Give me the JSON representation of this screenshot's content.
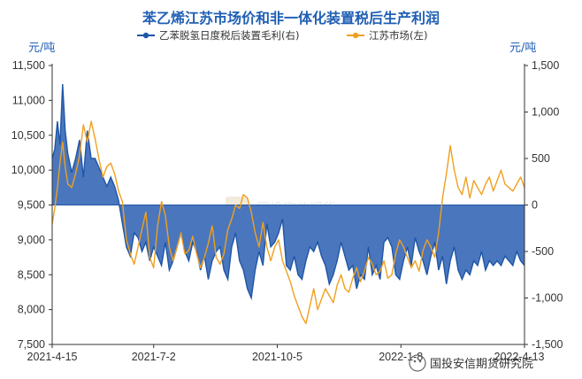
{
  "chart_data": {
    "type": "area",
    "title": "苯乙烯江苏市场价和非一体化装置税后生产利润",
    "left_unit": "元/吨",
    "right_unit": "元/吨",
    "left_axis": {
      "min": 7500,
      "max": 11500,
      "ticks": [
        "11,500",
        "11,000",
        "10,500",
        "10,000",
        "9,500",
        "9,000",
        "8,500",
        "8,000",
        "7,500"
      ]
    },
    "right_axis": {
      "min": -1500,
      "max": 1500,
      "ticks": [
        "1,500",
        "1,000",
        "500",
        "0",
        "-500",
        "-1,000",
        "-1,500"
      ]
    },
    "x_ticks": [
      "2021-4-15",
      "2021-7-2",
      "2021-10-5",
      "2022-1-8",
      "2022-4-13"
    ],
    "x_range": [
      "2021-4-15",
      "2022-4-13"
    ],
    "grid": false,
    "legend_position": "top",
    "colors": {
      "margin": "#1f56a6",
      "margin_fill": "#4a76bd",
      "price": "#f0a020",
      "title": "#1f5fb4"
    },
    "series": [
      {
        "name": "乙苯脱氢日度税后装置毛利(右)",
        "axis": "right",
        "style": "area",
        "x": [
          "2021-4-15",
          "2021-4-17",
          "2021-4-19",
          "2021-4-21",
          "2021-4-23",
          "2021-4-25",
          "2021-4-27",
          "2021-4-30",
          "2021-5-3",
          "2021-5-6",
          "2021-5-9",
          "2021-5-12",
          "2021-5-15",
          "2021-5-18",
          "2021-5-21",
          "2021-5-24",
          "2021-5-27",
          "2021-5-30",
          "2021-6-2",
          "2021-6-5",
          "2021-6-8",
          "2021-6-11",
          "2021-6-14",
          "2021-6-17",
          "2021-6-20",
          "2021-6-23",
          "2021-6-26",
          "2021-6-29",
          "2021-7-2",
          "2021-7-5",
          "2021-7-8",
          "2021-7-11",
          "2021-7-14",
          "2021-7-17",
          "2021-7-20",
          "2021-7-23",
          "2021-7-26",
          "2021-7-29",
          "2021-8-1",
          "2021-8-4",
          "2021-8-7",
          "2021-8-10",
          "2021-8-13",
          "2021-8-16",
          "2021-8-19",
          "2021-8-22",
          "2021-8-25",
          "2021-8-28",
          "2021-8-31",
          "2021-9-3",
          "2021-9-6",
          "2021-9-9",
          "2021-9-12",
          "2021-9-15",
          "2021-9-18",
          "2021-9-21",
          "2021-9-24",
          "2021-9-27",
          "2021-9-30",
          "2021-10-3",
          "2021-10-6",
          "2021-10-9",
          "2021-10-12",
          "2021-10-15",
          "2021-10-18",
          "2021-10-21",
          "2021-10-24",
          "2021-10-27",
          "2021-10-30",
          "2021-11-2",
          "2021-11-5",
          "2021-11-8",
          "2021-11-11",
          "2021-11-14",
          "2021-11-17",
          "2021-11-20",
          "2021-11-23",
          "2021-11-26",
          "2021-11-29",
          "2021-12-2",
          "2021-12-5",
          "2021-12-8",
          "2021-12-11",
          "2021-12-14",
          "2021-12-17",
          "2021-12-20",
          "2021-12-23",
          "2021-12-26",
          "2021-12-29",
          "2022-1-1",
          "2022-1-4",
          "2022-1-7",
          "2022-1-10",
          "2022-1-13",
          "2022-1-16",
          "2022-1-19",
          "2022-1-22",
          "2022-1-25",
          "2022-1-28",
          "2022-1-31",
          "2022-2-3",
          "2022-2-6",
          "2022-2-9",
          "2022-2-12",
          "2022-2-15",
          "2022-2-18",
          "2022-2-21",
          "2022-2-24",
          "2022-2-27",
          "2022-3-2",
          "2022-3-5",
          "2022-3-8",
          "2022-3-11",
          "2022-3-14",
          "2022-3-17",
          "2022-3-20",
          "2022-3-23",
          "2022-3-26",
          "2022-3-29",
          "2022-4-1",
          "2022-4-4",
          "2022-4-7",
          "2022-4-10",
          "2022-4-13"
        ],
        "values": [
          500,
          600,
          900,
          650,
          1300,
          800,
          550,
          350,
          500,
          700,
          300,
          800,
          500,
          500,
          400,
          300,
          200,
          300,
          200,
          50,
          -200,
          -450,
          -550,
          -300,
          -350,
          -500,
          -400,
          -600,
          -450,
          -550,
          -650,
          -400,
          -700,
          -600,
          -450,
          -300,
          -500,
          -600,
          -400,
          -500,
          -700,
          -550,
          -800,
          -600,
          -500,
          -450,
          -700,
          -800,
          -450,
          -300,
          -600,
          -700,
          -900,
          -1000,
          -700,
          -500,
          -650,
          -200,
          -450,
          -400,
          -300,
          -150,
          -650,
          -700,
          -550,
          -750,
          -800,
          -600,
          -450,
          -500,
          -400,
          -550,
          -650,
          -850,
          -750,
          -600,
          -400,
          -550,
          -700,
          -650,
          -900,
          -750,
          -800,
          -450,
          -750,
          -650,
          -800,
          -400,
          -350,
          -450,
          -750,
          -800,
          -600,
          -450,
          -650,
          -350,
          -500,
          -600,
          -750,
          -550,
          -400,
          -700,
          -550,
          -850,
          -600,
          -450,
          -700,
          -800,
          -700,
          -750,
          -600,
          -650,
          -500,
          -700,
          -600,
          -650,
          -600,
          -650,
          -550,
          -600,
          -650,
          -500,
          -600,
          -650
        ]
      },
      {
        "name": "江苏市场(左)",
        "axis": "left",
        "style": "line",
        "x": [
          "2021-4-15",
          "2021-4-17",
          "2021-4-19",
          "2021-4-21",
          "2021-4-23",
          "2021-4-25",
          "2021-4-27",
          "2021-4-30",
          "2021-5-3",
          "2021-5-6",
          "2021-5-9",
          "2021-5-12",
          "2021-5-15",
          "2021-5-18",
          "2021-5-21",
          "2021-5-24",
          "2021-5-27",
          "2021-5-30",
          "2021-6-2",
          "2021-6-5",
          "2021-6-8",
          "2021-6-11",
          "2021-6-14",
          "2021-6-17",
          "2021-6-20",
          "2021-6-23",
          "2021-6-26",
          "2021-6-29",
          "2021-7-2",
          "2021-7-5",
          "2021-7-8",
          "2021-7-11",
          "2021-7-14",
          "2021-7-17",
          "2021-7-20",
          "2021-7-23",
          "2021-7-26",
          "2021-7-29",
          "2021-8-1",
          "2021-8-4",
          "2021-8-7",
          "2021-8-10",
          "2021-8-13",
          "2021-8-16",
          "2021-8-19",
          "2021-8-22",
          "2021-8-25",
          "2021-8-28",
          "2021-8-31",
          "2021-9-3",
          "2021-9-6",
          "2021-9-9",
          "2021-9-12",
          "2021-9-15",
          "2021-9-18",
          "2021-9-21",
          "2021-9-24",
          "2021-9-27",
          "2021-9-30",
          "2021-10-3",
          "2021-10-6",
          "2021-10-9",
          "2021-10-12",
          "2021-10-15",
          "2021-10-18",
          "2021-10-21",
          "2021-10-24",
          "2021-10-27",
          "2021-10-30",
          "2021-11-2",
          "2021-11-5",
          "2021-11-8",
          "2021-11-11",
          "2021-11-14",
          "2021-11-17",
          "2021-11-20",
          "2021-11-23",
          "2021-11-26",
          "2021-11-29",
          "2021-12-2",
          "2021-12-5",
          "2021-12-8",
          "2021-12-11",
          "2021-12-14",
          "2021-12-17",
          "2021-12-20",
          "2021-12-23",
          "2021-12-26",
          "2021-12-29",
          "2022-1-1",
          "2022-1-4",
          "2022-1-7",
          "2022-1-10",
          "2022-1-13",
          "2022-1-16",
          "2022-1-19",
          "2022-1-22",
          "2022-1-25",
          "2022-1-28",
          "2022-1-31",
          "2022-2-3",
          "2022-2-6",
          "2022-2-9",
          "2022-2-12",
          "2022-2-15",
          "2022-2-18",
          "2022-2-21",
          "2022-2-24",
          "2022-2-27",
          "2022-3-2",
          "2022-3-5",
          "2022-3-8",
          "2022-3-11",
          "2022-3-14",
          "2022-3-17",
          "2022-3-20",
          "2022-3-23",
          "2022-3-26",
          "2022-3-29",
          "2022-4-1",
          "2022-4-4",
          "2022-4-7",
          "2022-4-10",
          "2022-4-13"
        ],
        "values": [
          9230,
          9450,
          9750,
          10100,
          10400,
          10050,
          9800,
          9750,
          9950,
          10200,
          10650,
          10400,
          10700,
          10450,
          10150,
          9900,
          10050,
          10100,
          9950,
          9700,
          9550,
          9000,
          8800,
          8650,
          8900,
          9150,
          9400,
          8750,
          8600,
          9200,
          9550,
          9350,
          8900,
          8700,
          8900,
          9100,
          8800,
          8850,
          9050,
          8800,
          8600,
          8750,
          8950,
          9200,
          8750,
          8650,
          8800,
          9150,
          9300,
          9500,
          9450,
          9650,
          9600,
          9400,
          9100,
          8900,
          9250,
          8900,
          8700,
          8900,
          9000,
          8700,
          8550,
          8400,
          8200,
          8050,
          7900,
          7800,
          8050,
          8300,
          8000,
          8150,
          8300,
          8200,
          8100,
          8350,
          8500,
          8300,
          8250,
          8450,
          8600,
          8400,
          8550,
          8750,
          8650,
          8500,
          8550,
          8700,
          8450,
          8500,
          8800,
          9000,
          8900,
          8750,
          8600,
          8700,
          8550,
          8850,
          9000,
          8900,
          8750,
          9100,
          9600,
          9950,
          10350,
          10000,
          9750,
          9650,
          9900,
          9600,
          9850,
          9750,
          9650,
          9800,
          9900,
          9700,
          9850,
          10000,
          9800,
          9750,
          9700,
          9800,
          9900,
          9750
        ]
      }
    ]
  },
  "watermark": {
    "center_text": "国投安信期货",
    "corner_text": "国投安信期货研究院"
  }
}
